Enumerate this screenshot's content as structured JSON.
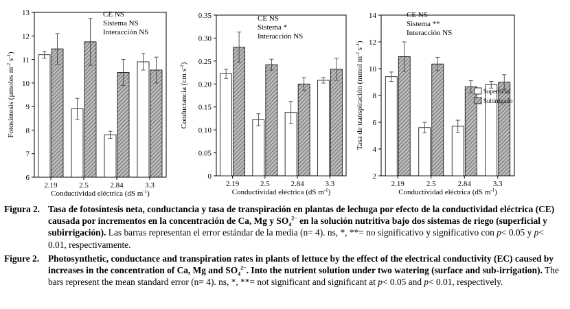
{
  "chart_data": [
    {
      "type": "bar",
      "categories": [
        "2.19",
        "2.5",
        "2.84",
        "3.3"
      ],
      "series": [
        {
          "name": "Superficial",
          "values": [
            11.2,
            8.9,
            7.8,
            10.9
          ],
          "errors": [
            0.15,
            0.45,
            0.15,
            0.35
          ],
          "fill": "#ffffff"
        },
        {
          "name": "Subirrigado",
          "values": [
            11.45,
            11.75,
            10.45,
            10.55
          ],
          "errors": [
            0.65,
            1.0,
            0.55,
            0.55
          ],
          "fill": "#999999"
        }
      ],
      "ylabel": "Fotosíntesis (µmoles m",
      "ylabel_sup": "-2",
      "ylabel_tail": "s",
      "ylabel_sup2": "-1",
      "ylabel_end": ")",
      "xlabel": "Conductividad eléctrica (dS m",
      "xlabel_sup": "-1",
      "xlabel_end": ")",
      "ylim": [
        6,
        13
      ],
      "yticks": [
        "6",
        "7",
        "8",
        "9",
        "10",
        "11",
        "12",
        "13"
      ],
      "annotations": [
        "CE NS",
        "Sistema NS",
        "Interacción NS"
      ]
    },
    {
      "type": "bar",
      "categories": [
        "2.19",
        "2.5",
        "2.84",
        "3.3"
      ],
      "series": [
        {
          "name": "Superficial",
          "values": [
            0.222,
            0.122,
            0.138,
            0.208
          ],
          "errors": [
            0.01,
            0.013,
            0.024,
            0.006
          ],
          "fill": "#ffffff"
        },
        {
          "name": "Subirrigado",
          "values": [
            0.28,
            0.242,
            0.2,
            0.232
          ],
          "errors": [
            0.033,
            0.012,
            0.014,
            0.024
          ],
          "fill": "#999999"
        }
      ],
      "ylabel": "Conductancia (cm s",
      "ylabel_sup": "-1",
      "ylabel_end": ")",
      "xlabel": "Conductividad eléctrica (dS m",
      "xlabel_sup": "-1",
      "xlabel_end": ")",
      "ylim": [
        0,
        0.35
      ],
      "yticks": [
        "0",
        "0.05",
        "0.10",
        "0.15",
        "0.20",
        "0.25",
        "0.30",
        "0.35"
      ],
      "annotations": [
        "CE NS",
        "Sistema *",
        "Interacción NS"
      ]
    },
    {
      "type": "bar",
      "categories": [
        "2.19",
        "2.5",
        "2.84",
        "3.3"
      ],
      "series": [
        {
          "name": "Superficial",
          "values": [
            9.4,
            5.6,
            5.7,
            8.8
          ],
          "errors": [
            0.35,
            0.4,
            0.45,
            0.25
          ],
          "fill": "#ffffff"
        },
        {
          "name": "Subirrigado",
          "values": [
            10.9,
            10.35,
            8.65,
            9.0
          ],
          "errors": [
            1.1,
            0.5,
            0.45,
            0.55
          ],
          "fill": "#999999"
        }
      ],
      "ylabel": "Tasa de transpiración (mmol m",
      "ylabel_sup": "-2",
      "ylabel_tail": "s",
      "ylabel_sup2": "-1",
      "ylabel_end": ")",
      "xlabel": "Conductividad eléctrica (dS m",
      "xlabel_sup": "-1",
      "xlabel_end": ")",
      "ylim": [
        2,
        14
      ],
      "yticks": [
        "2",
        "4",
        "6",
        "8",
        "10",
        "12",
        "14"
      ],
      "annotations": [
        "CE NS",
        "Sistema **",
        "Interacción NS"
      ],
      "legend": [
        "Superficial",
        "Subirrigado"
      ]
    }
  ],
  "caption_es": {
    "label": "Figura 2.",
    "bold_part1": "Tasa de fotosíntesis neta, conductancia y tasa de transpiración en plantas de lechuga por efecto de la conductividad eléctrica (CE) causada por incrementos en la concentración de Ca, Mg y SO",
    "bold_sub": "4",
    "bold_sup": "2−",
    "bold_part2": " en la solución nutritiva bajo dos sistemas de riego (superficial y subirrigación).",
    "rest_a": " Las barras representan el error estándar de la media (n= 4). ns, *, **= no significativo y significativo con ",
    "p1": "p",
    "rest_b": "< 0.05 y ",
    "p2": "p",
    "rest_c": "< 0.01, respectivamente."
  },
  "caption_en": {
    "label": "Figure 2.",
    "bold_part1": "Photosynthetic, conductance and transpiration rates in plants of lettuce by the effect of the electrical conductivity (EC) caused by increases in the concentration of Ca, Mg and SO",
    "bold_sub": "4",
    "bold_sup": "2−",
    "bold_part2": ". Into the nutrient solution under two watering (surface and sub-irrigation).",
    "rest_a": " The bars represent the mean standard error (n= 4). ns, *, **= not significant and significant at ",
    "p1": "p",
    "rest_b": "< 0.05 and ",
    "p2": "p",
    "rest_c": "< 0.01, respectively."
  }
}
